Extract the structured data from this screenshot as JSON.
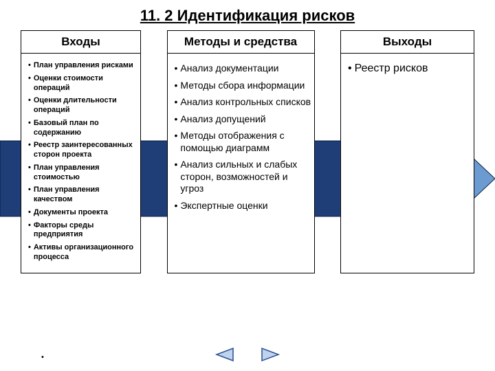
{
  "title": "11. 2 Идентификация рисков",
  "columns": {
    "inputs": {
      "header": "Входы",
      "items": [
        "План управления рисками",
        "Оценки стоимости операций",
        "Оценки длительности операций",
        "Базовый план по содержанию",
        "Реестр заинтересованных сторон проекта",
        "План управления стоимостью",
        "План управления качеством",
        "Документы проекта",
        "Факторы среды предприятия",
        "Активы организационного процесса"
      ]
    },
    "methods": {
      "header": "Методы и средства",
      "items": [
        "Анализ документации",
        "Методы сбора информации",
        "Анализ контрольных списков",
        "Анализ допущений",
        "Методы отображения с помощью диаграмм",
        "Анализ сильных и слабых сторон, возможностей и угроз",
        "Экспертные оценки"
      ]
    },
    "outputs": {
      "header": "Выходы",
      "items": [
        "Реестр рисков"
      ]
    }
  },
  "arrow": {
    "body_color": "#1f3e78",
    "head_color": "#6b9bd1",
    "border_color": "#0a1f40"
  },
  "nav": {
    "prev_fill": "#bfd3ef",
    "prev_stroke": "#2a4d8f",
    "next_fill": "#bfd3ef",
    "next_stroke": "#2a4d8f"
  },
  "background_color": "#ffffff",
  "border_color": "#000000"
}
